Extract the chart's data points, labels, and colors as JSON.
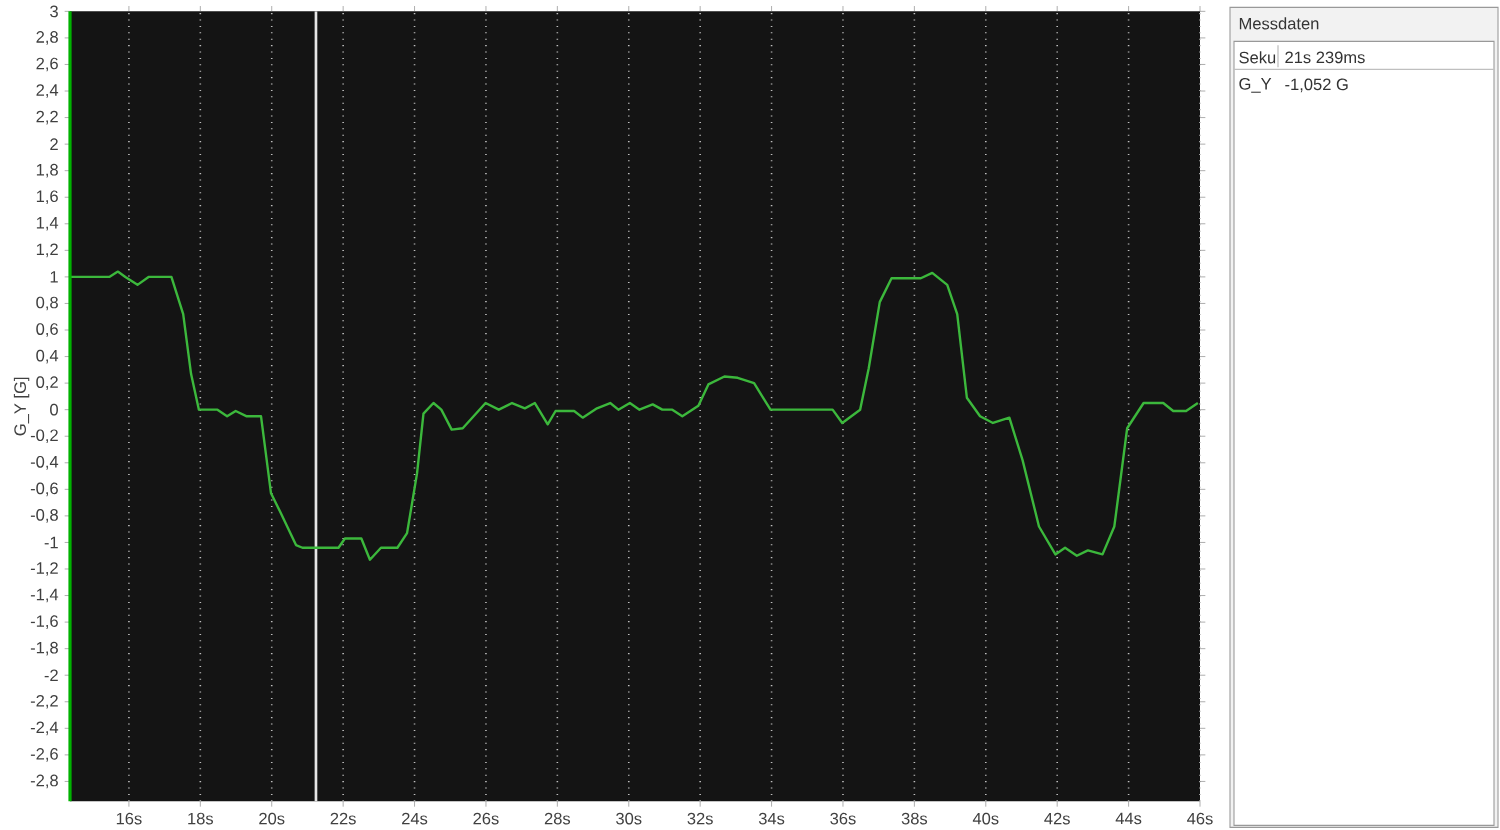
{
  "chart_data": {
    "type": "line",
    "ylabel": "G_Y [G]",
    "x": [
      14.35,
      15.45,
      15.69,
      15.9,
      16.24,
      16.55,
      17.19,
      17.52,
      17.74,
      17.96,
      18.48,
      18.75,
      18.99,
      19.3,
      19.7,
      19.98,
      20.22,
      20.68,
      20.86,
      21.87,
      22.05,
      22.51,
      22.75,
      23.06,
      23.52,
      23.79,
      24.07,
      24.25,
      24.53,
      24.75,
      25.04,
      25.35,
      25.99,
      26.36,
      26.73,
      27.09,
      27.37,
      27.73,
      27.95,
      28.47,
      28.71,
      29.11,
      29.48,
      29.71,
      30.03,
      30.3,
      30.67,
      30.94,
      31.22,
      31.5,
      31.95,
      32.23,
      32.68,
      33.05,
      33.51,
      33.97,
      35.71,
      35.98,
      36.48,
      36.72,
      37.03,
      37.36,
      38.18,
      38.5,
      38.92,
      39.2,
      39.47,
      39.84,
      40.2,
      40.66,
      41.03,
      41.49,
      41.95,
      42.22,
      42.55,
      42.86,
      43.27,
      43.6,
      43.96,
      44.42,
      44.97,
      45.25,
      45.61,
      45.94
    ],
    "series": [
      {
        "color": "#3cb83c",
        "values": [
          1.0,
          1.0,
          1.04,
          1.0,
          0.94,
          1.0,
          1.0,
          0.72,
          0.27,
          0.0,
          0.0,
          -0.05,
          -0.01,
          -0.05,
          -0.05,
          -0.63,
          -0.76,
          -1.02,
          -1.04,
          -1.04,
          -0.97,
          -0.97,
          -1.13,
          -1.04,
          -1.04,
          -0.93,
          -0.48,
          -0.03,
          0.05,
          0.0,
          -0.15,
          -0.14,
          0.05,
          0.0,
          0.05,
          0.01,
          0.05,
          -0.11,
          -0.01,
          -0.01,
          -0.06,
          0.01,
          0.05,
          0.0,
          0.05,
          0.0,
          0.04,
          0.0,
          0.0,
          -0.05,
          0.03,
          0.19,
          0.25,
          0.24,
          0.2,
          0.0,
          0.0,
          -0.1,
          0.0,
          0.31,
          0.81,
          0.99,
          0.99,
          1.03,
          0.94,
          0.72,
          0.09,
          -0.05,
          -0.1,
          -0.06,
          -0.38,
          -0.88,
          -1.09,
          -1.04,
          -1.1,
          -1.06,
          -1.09,
          -0.88,
          -0.14,
          0.05,
          0.05,
          -0.01,
          -0.01,
          0.05
        ]
      }
    ],
    "xlim": [
      14.35,
      46
    ],
    "ylim": [
      -2.95,
      3
    ],
    "xticks": [
      {
        "value": 16,
        "label": "16s"
      },
      {
        "value": 18,
        "label": "18s"
      },
      {
        "value": 20,
        "label": "20s"
      },
      {
        "value": 22,
        "label": "22s"
      },
      {
        "value": 24,
        "label": "24s"
      },
      {
        "value": 26,
        "label": "26s"
      },
      {
        "value": 28,
        "label": "28s"
      },
      {
        "value": 30,
        "label": "30s"
      },
      {
        "value": 32,
        "label": "32s"
      },
      {
        "value": 34,
        "label": "34s"
      },
      {
        "value": 36,
        "label": "36s"
      },
      {
        "value": 38,
        "label": "38s"
      },
      {
        "value": 40,
        "label": "40s"
      },
      {
        "value": 42,
        "label": "42s"
      },
      {
        "value": 44,
        "label": "44s"
      },
      {
        "value": 46,
        "label": "46s"
      }
    ],
    "yticks": [
      3,
      {
        "value": 2.8,
        "label": "2,8"
      },
      {
        "value": 2.6,
        "label": "2,6"
      },
      {
        "value": 2.4,
        "label": "2,4"
      },
      {
        "value": 2.2,
        "label": "2,2"
      },
      2,
      {
        "value": 1.8,
        "label": "1,8"
      },
      {
        "value": 1.6,
        "label": "1,6"
      },
      {
        "value": 1.4,
        "label": "1,4"
      },
      {
        "value": 1.2,
        "label": "1,2"
      },
      1,
      {
        "value": 0.8,
        "label": "0,8"
      },
      {
        "value": 0.6,
        "label": "0,6"
      },
      {
        "value": 0.4,
        "label": "0,4"
      },
      {
        "value": 0.2,
        "label": "0,2"
      },
      0,
      {
        "value": -0.2,
        "label": "-0,2"
      },
      {
        "value": -0.4,
        "label": "-0,4"
      },
      {
        "value": -0.6,
        "label": "-0,6"
      },
      {
        "value": -0.8,
        "label": "-0,8"
      },
      -1,
      {
        "value": -1.2,
        "label": "-1,2"
      },
      {
        "value": -1.4,
        "label": "-1,4"
      },
      {
        "value": -1.6,
        "label": "-1,6"
      },
      {
        "value": -1.8,
        "label": "-1,8"
      },
      -2,
      {
        "value": -2.2,
        "label": "-2,2"
      },
      {
        "value": -2.4,
        "label": "-2,4"
      },
      {
        "value": -2.6,
        "label": "-2,6"
      },
      {
        "value": -2.8,
        "label": "-2,8"
      }
    ],
    "grid": "x",
    "ref_lines": [
      {
        "axis": "x",
        "value": 21.239,
        "color": "#e6e6e6"
      }
    ],
    "annotations": [
      "Messdaten",
      "Seku",
      "21s 239ms",
      "G_Y",
      "-1,052 G"
    ]
  }
}
